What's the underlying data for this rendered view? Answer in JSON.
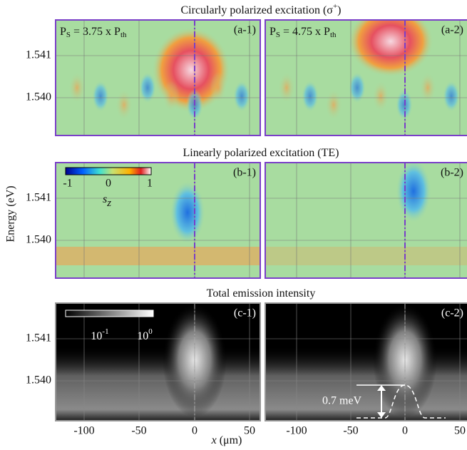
{
  "figure": {
    "row_titles": [
      {
        "text": "Circularly polarized excitation (σ",
        "sup": "+",
        "end": ")"
      },
      {
        "text": "Linearly polarized excitation (TE)"
      },
      {
        "text": "Total emission intensity"
      }
    ],
    "y_label": "Energy (eV)",
    "x_label": {
      "var": "x",
      "unit": " (μm)"
    },
    "y_ticks": [
      "1.541",
      "1.540"
    ],
    "x_ticks": [
      "-100",
      "-50",
      "0",
      "50"
    ],
    "panels": [
      [
        "(a-1)",
        "(a-2)"
      ],
      [
        "(b-1)",
        "(b-2)"
      ],
      [
        "(c-1)",
        "(c-2)"
      ]
    ],
    "power_labels": [
      {
        "p": "P",
        "s": "S",
        "mid": " = 3.75 x P",
        "th": "th"
      },
      {
        "p": "P",
        "s": "S",
        "mid": " = 4.75 x P",
        "th": "th"
      }
    ],
    "sz_colorbar": {
      "ticks": [
        "-1",
        "0",
        "1"
      ],
      "var": "s",
      "sub": "z"
    },
    "intensity_colorbar": {
      "ticks": [
        {
          "base": "10",
          "exp": "-1"
        },
        {
          "base": "10",
          "exp": "0"
        }
      ]
    },
    "annotation": "0.7 meV"
  }
}
